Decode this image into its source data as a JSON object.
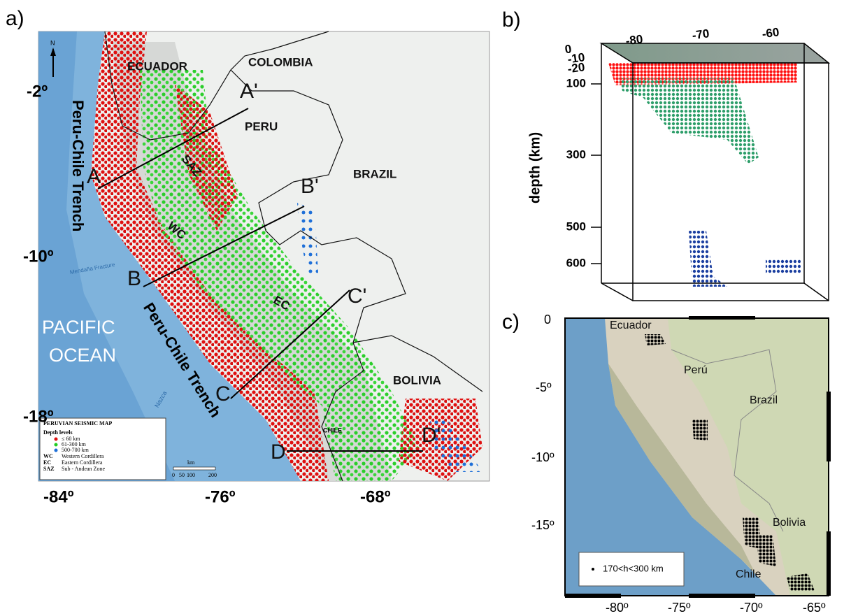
{
  "panel_labels": [
    "a)",
    "b)",
    "c)"
  ],
  "map_a": {
    "lat_labels": [
      "-2º",
      "-10º",
      "-18º"
    ],
    "lon_labels": [
      "-84º",
      "-76º",
      "-68º"
    ],
    "countries": [
      "ECUADOR",
      "COLOMBIA",
      "PERU",
      "BRAZIL",
      "BOLIVIA",
      "CHILE"
    ],
    "regions": [
      "SAZ",
      "WC",
      "EC"
    ],
    "ocean": [
      "PACIFIC",
      "OCEAN"
    ],
    "trench_labels": [
      "Peru-Chile Trench",
      "Peru-Chile Trench"
    ],
    "section_labels": [
      "A",
      "A'",
      "B",
      "B'",
      "C",
      "C'",
      "D",
      "D'"
    ],
    "north": "N",
    "fracture": "Mendaña Fracture",
    "nazca": "Nazca",
    "legend": {
      "title": "PERUVIAN SEISMIC MAP",
      "subtitle": "Depth levels",
      "items": [
        "≤ 60 km",
        "61-300 km",
        "500-700 km"
      ],
      "abbrev": [
        [
          "WC",
          "Western Cordillera"
        ],
        [
          "EC",
          "Eastern Cordillera"
        ],
        [
          "SAZ",
          "Sub - Andean Zone"
        ]
      ],
      "scale_unit": "km",
      "scale_ticks": [
        "0",
        "50",
        "100",
        "200"
      ]
    }
  },
  "plot_b": {
    "ylabel": "depth (km)",
    "yticks": [
      "100",
      "300",
      "500",
      "600"
    ],
    "top_ticks": [
      "-80",
      "-70",
      "-60"
    ],
    "side_ticks": [
      "0",
      "-10",
      "-20"
    ]
  },
  "map_c": {
    "lat_labels": [
      "0",
      "-5º",
      "-10º",
      "-15º"
    ],
    "lon_labels": [
      "-80º",
      "-75º",
      "-70º",
      "-65º"
    ],
    "countries": [
      "Ecuador",
      "Perú",
      "Brazil",
      "Bolivia",
      "Chile"
    ],
    "legend": "170<h<300 km"
  }
}
